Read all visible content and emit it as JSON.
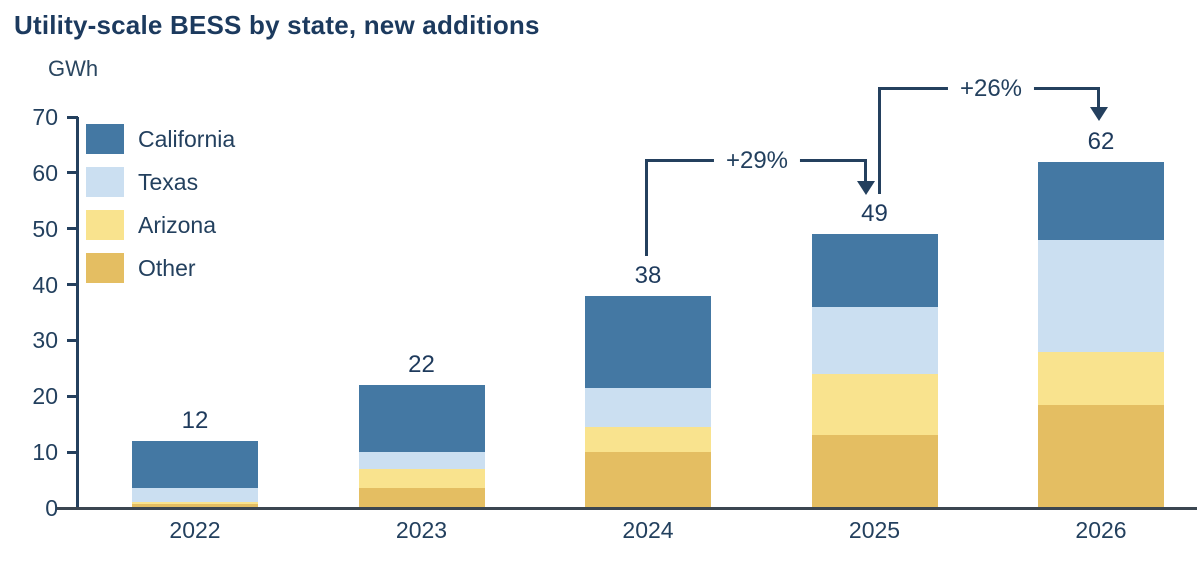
{
  "page": {
    "title": "Utility-scale BESS by state, new additions",
    "axis_unit": "GWh"
  },
  "chart_data": {
    "type": "bar",
    "stacked": true,
    "title": "Utility-scale BESS by state, new additions",
    "ylabel": "GWh",
    "xlabel": "",
    "categories": [
      "2022",
      "2023",
      "2024",
      "2025",
      "2026"
    ],
    "series": [
      {
        "name": "California",
        "color": "#4478A3",
        "values": [
          8.5,
          12,
          16.5,
          13,
          14
        ]
      },
      {
        "name": "Texas",
        "color": "#CBDFF1",
        "values": [
          2.5,
          3,
          7,
          12,
          20
        ]
      },
      {
        "name": "Arizona",
        "color": "#F9E38E",
        "values": [
          0.3,
          3.5,
          4.5,
          11,
          9.5
        ]
      },
      {
        "name": "Other",
        "color": "#E4BE62",
        "values": [
          0.7,
          3.5,
          10,
          13,
          18.5
        ]
      }
    ],
    "stack_order_bottom_to_top": [
      "Other",
      "Arizona",
      "Texas",
      "California"
    ],
    "totals": [
      12,
      22,
      38,
      49,
      62
    ],
    "total_labels": [
      "12",
      "22",
      "38",
      "49",
      "62"
    ],
    "annotations": [
      {
        "label": "+29%",
        "from_category": "2024",
        "to_category": "2025"
      },
      {
        "label": "+26%",
        "from_category": "2025",
        "to_category": "2026"
      }
    ],
    "ylim": [
      0,
      70
    ],
    "yticks": [
      0,
      10,
      20,
      30,
      40,
      50,
      60,
      70
    ],
    "legend": [
      "California",
      "Texas",
      "Arizona",
      "Other"
    ],
    "legend_position": "inside-top-left",
    "grid": false
  },
  "colors": {
    "title_navy": "#1C3A5E",
    "text_navy": "#23405E",
    "arrow_navy": "#24405E",
    "axis_baseline": "#3B4651",
    "background": "#FFFFFF"
  }
}
